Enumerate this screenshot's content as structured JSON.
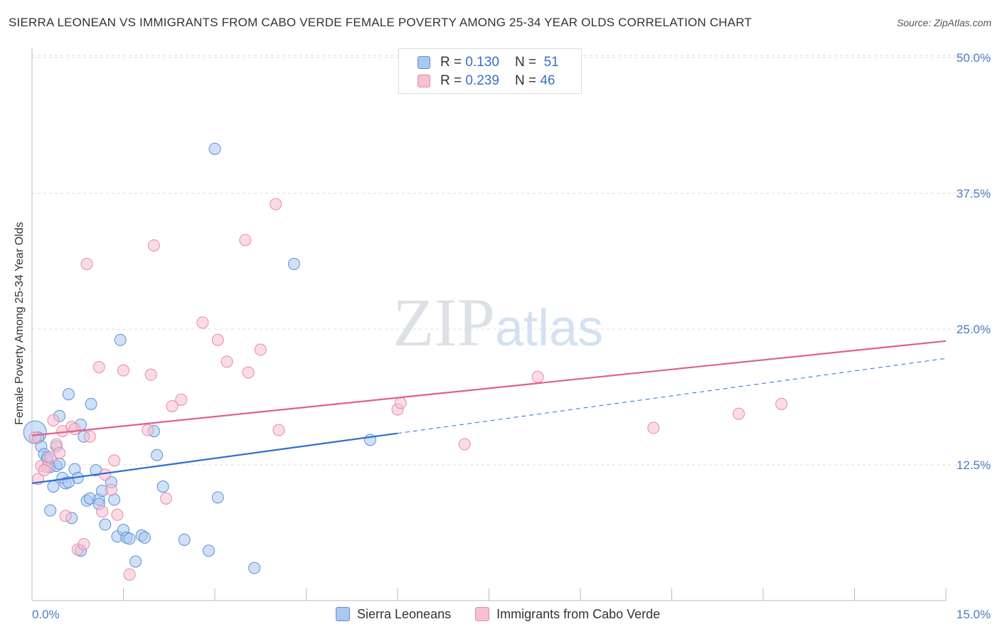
{
  "title": "SIERRA LEONEAN VS IMMIGRANTS FROM CABO VERDE FEMALE POVERTY AMONG 25-34 YEAR OLDS CORRELATION CHART",
  "source": "Source: ZipAtlas.com",
  "watermark": {
    "zip": "ZIP",
    "atlas": "atlas"
  },
  "legend": {
    "rows": [
      {
        "r_label": "R =",
        "r_value": "0.130",
        "n_label": "N =",
        "n_value": "51"
      },
      {
        "r_label": "R =",
        "r_value": "0.239",
        "n_label": "N =",
        "n_value": "46"
      }
    ]
  },
  "bottom_legend": [
    "Sierra Leoneans",
    "Immigrants from Cabo Verde"
  ],
  "colors": {
    "blue_fill": "#aac8f0",
    "blue_stroke": "#5b8fd6",
    "blue_line": "#2d6fd0",
    "pink_fill": "#f7bfd0",
    "pink_stroke": "#e58aa8",
    "pink_line": "#e0608c",
    "grid": "#dcdcdc",
    "tick_text": "#4a7cc4"
  },
  "chart_data": {
    "type": "scatter",
    "title": "SIERRA LEONEAN VS IMMIGRANTS FROM CABO VERDE FEMALE POVERTY AMONG 25-34 YEAR OLDS CORRELATION CHART",
    "xlabel": "",
    "ylabel": "Female Poverty Among 25-34 Year Olds",
    "xlim": [
      0,
      15
    ],
    "ylim": [
      0,
      50
    ],
    "x_tick_labels": [
      "0.0%",
      "15.0%"
    ],
    "y_tick_labels": [
      "12.5%",
      "25.0%",
      "37.5%",
      "50.0%"
    ],
    "y_ticks": [
      12.5,
      25,
      37.5,
      50
    ],
    "grid": true,
    "legend_position": "top-center",
    "series": [
      {
        "name": "Sierra Leoneans",
        "r": 0.13,
        "n": 51,
        "trend": {
          "x0": 0,
          "y0": 10.8,
          "x1": 6,
          "y1": 15.4,
          "dashed_to_x": 15,
          "dashed_to_y": 22.3
        },
        "points": [
          [
            0.05,
            15.5
          ],
          [
            0.1,
            15.0
          ],
          [
            0.15,
            14.2
          ],
          [
            0.2,
            13.5
          ],
          [
            0.25,
            13.0
          ],
          [
            0.3,
            12.3
          ],
          [
            0.35,
            10.5
          ],
          [
            0.4,
            14.2
          ],
          [
            0.4,
            12.4
          ],
          [
            0.45,
            17.0
          ],
          [
            0.5,
            11.3
          ],
          [
            0.55,
            10.8
          ],
          [
            0.6,
            19.0
          ],
          [
            0.65,
            7.6
          ],
          [
            0.7,
            12.1
          ],
          [
            0.75,
            11.3
          ],
          [
            0.8,
            16.2
          ],
          [
            0.85,
            15.1
          ],
          [
            0.9,
            9.2
          ],
          [
            0.95,
            9.4
          ],
          [
            0.97,
            18.1
          ],
          [
            1.05,
            12.0
          ],
          [
            1.1,
            9.3
          ],
          [
            1.15,
            10.1
          ],
          [
            1.2,
            7.0
          ],
          [
            1.3,
            10.9
          ],
          [
            1.35,
            9.3
          ],
          [
            1.4,
            5.9
          ],
          [
            1.45,
            24.0
          ],
          [
            1.5,
            6.5
          ],
          [
            1.55,
            5.8
          ],
          [
            1.6,
            5.7
          ],
          [
            1.7,
            3.6
          ],
          [
            1.8,
            6.0
          ],
          [
            1.85,
            5.8
          ],
          [
            2.0,
            15.6
          ],
          [
            2.05,
            13.4
          ],
          [
            2.15,
            10.5
          ],
          [
            2.5,
            5.6
          ],
          [
            2.9,
            4.6
          ],
          [
            3.0,
            41.6
          ],
          [
            3.05,
            9.5
          ],
          [
            3.65,
            3.0
          ],
          [
            4.3,
            31.0
          ],
          [
            5.55,
            14.8
          ],
          [
            0.3,
            8.3
          ],
          [
            0.8,
            4.6
          ],
          [
            0.25,
            13.2
          ],
          [
            1.1,
            8.9
          ],
          [
            0.6,
            10.9
          ],
          [
            0.45,
            12.6
          ]
        ]
      },
      {
        "name": "Immigrants from Cabo Verde",
        "r": 0.239,
        "n": 46,
        "trend": {
          "x0": 0,
          "y0": 15.2,
          "x1": 15,
          "y1": 23.9
        },
        "points": [
          [
            0.05,
            15.0
          ],
          [
            0.1,
            11.2
          ],
          [
            0.15,
            12.4
          ],
          [
            0.25,
            12.3
          ],
          [
            0.3,
            13.2
          ],
          [
            0.35,
            16.6
          ],
          [
            0.4,
            14.4
          ],
          [
            0.5,
            15.6
          ],
          [
            0.55,
            7.8
          ],
          [
            0.65,
            16.0
          ],
          [
            0.7,
            15.8
          ],
          [
            0.75,
            4.7
          ],
          [
            0.85,
            5.2
          ],
          [
            0.9,
            31.0
          ],
          [
            0.95,
            15.1
          ],
          [
            1.1,
            21.5
          ],
          [
            1.15,
            8.2
          ],
          [
            1.2,
            11.6
          ],
          [
            1.3,
            10.2
          ],
          [
            1.35,
            12.9
          ],
          [
            1.4,
            7.9
          ],
          [
            1.5,
            21.2
          ],
          [
            1.6,
            2.4
          ],
          [
            1.9,
            15.7
          ],
          [
            1.95,
            20.8
          ],
          [
            2.0,
            32.7
          ],
          [
            2.2,
            9.4
          ],
          [
            2.3,
            17.9
          ],
          [
            2.45,
            18.5
          ],
          [
            2.8,
            25.6
          ],
          [
            3.05,
            24.0
          ],
          [
            3.2,
            22.0
          ],
          [
            3.5,
            33.2
          ],
          [
            3.55,
            21.0
          ],
          [
            3.75,
            23.1
          ],
          [
            4.0,
            36.5
          ],
          [
            4.05,
            15.7
          ],
          [
            6.0,
            17.6
          ],
          [
            6.05,
            18.2
          ],
          [
            7.1,
            14.4
          ],
          [
            8.3,
            20.6
          ],
          [
            10.2,
            15.9
          ],
          [
            11.6,
            17.2
          ],
          [
            12.3,
            18.1
          ],
          [
            0.2,
            12.0
          ],
          [
            0.45,
            13.6
          ]
        ]
      }
    ]
  }
}
